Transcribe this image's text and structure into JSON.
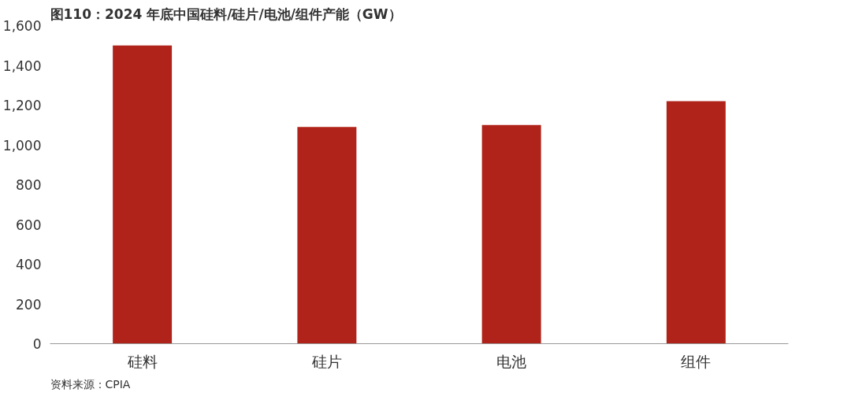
{
  "chart_data": {
    "type": "bar",
    "title": "图110：2024 年底中国硅料/硅片/电池/组件产能（GW）",
    "categories": [
      "硅料",
      "硅片",
      "电池",
      "组件"
    ],
    "values": [
      1500,
      1090,
      1100,
      1220
    ],
    "color": "#b0231a",
    "ylim": [
      0,
      1600
    ],
    "yticks": [
      {
        "value": 0,
        "label": "0"
      },
      {
        "value": 200,
        "label": "200"
      },
      {
        "value": 400,
        "label": "400"
      },
      {
        "value": 600,
        "label": "600"
      },
      {
        "value": 800,
        "label": "800"
      },
      {
        "value": 1000,
        "label": "1,000"
      },
      {
        "value": 1200,
        "label": "1,200"
      },
      {
        "value": 1400,
        "label": "1,400"
      },
      {
        "value": 1600,
        "label": "1,600"
      }
    ],
    "grid": false,
    "annotations": [
      "资料来源：CPIA"
    ]
  }
}
